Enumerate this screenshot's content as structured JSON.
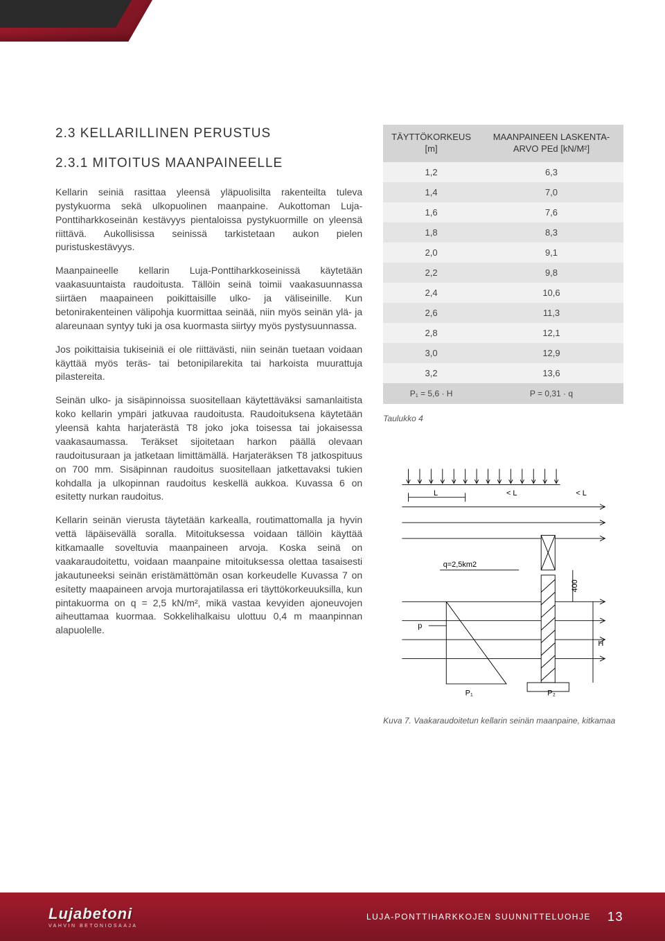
{
  "headings": {
    "h2": "2.3 KELLARILLINEN PERUSTUS",
    "h3": "2.3.1 MITOITUS MAANPAINEELLE"
  },
  "paragraphs": {
    "p1": "Kellarin seiniä rasittaa yleensä yläpuolisilta rakenteilta tuleva pystykuorma sekä ulkopuolinen maanpaine. Aukottoman Luja-Ponttiharkkoseinän kestävyys pientaloissa pystykuormille on yleensä riittävä. Aukollisissa seinissä tarkistetaan aukon pielen puristuskestävyys.",
    "p2": "Maanpaineelle kellarin Luja-Ponttiharkkoseinissä käytetään vaakasuuntaista raudoitusta. Tällöin seinä toimii vaakasuunnassa siirtäen maapaineen poikittaisille ulko- ja väliseinille. Kun betonirakenteinen välipohja kuormittaa seinää, niin myös seinän ylä- ja alareunaan syntyy tuki ja osa kuormasta siirtyy myös pystysuunnassa.",
    "p3": "Jos poikittaisia tukiseiniä ei ole riittävästi, niin seinän tuetaan voidaan käyttää myös teräs- tai betonipilarekita tai harkoista muurattuja pilastereita.",
    "p4": "Seinän ulko- ja sisäpinnoissa suositellaan käytettäväksi samanlaitista koko kellarin ympäri jatkuvaa raudoitusta. Raudoituksena käytetään yleensä kahta harjaterästä T8 joko joka toisessa tai jokaisessa vaakasaumassa. Teräkset sijoitetaan harkon päällä olevaan raudoitusuraan ja jatketaan limittämällä. Harjateräksen T8 jatkospituus on 700 mm. Sisäpinnan raudoitus suositellaan jatkettavaksi tukien kohdalla ja ulkopinnan raudoitus keskellä aukkoa. Kuvassa 6 on esitetty nurkan raudoitus.",
    "p5": "Kellarin seinän vierusta täytetään karkealla, routimattomalla ja hyvin vettä läpäisevällä soralla. Mitoituksessa voidaan tällöin käyttää kitkamaalle soveltuvia maanpaineen arvoja. Koska seinä on vaakaraudoitettu, voidaan maanpaine mitoituksessa olettaa tasaisesti jakautuneeksi seinän eristämättömän osan korkeudelle Kuvassa 7 on esitetty maapaineen arvoja murtorajatilassa eri täyttökorkeuuksilla, kun pintakuorma on q = 2,5 kN/m², mikä vastaa kevyiden ajoneuvojen aiheuttamaa kuormaa. Sokkelihalkaisu ulottuu 0,4 m maanpinnan alapuolelle."
  },
  "table": {
    "header_left": "TÄYTTÖKORKEUS [m]",
    "header_right": "MAANPAINEEN LASKENTA-ARVO PEd [kN/M²]",
    "rows": [
      [
        "1,2",
        "6,3"
      ],
      [
        "1,4",
        "7,0"
      ],
      [
        "1,6",
        "7,6"
      ],
      [
        "1,8",
        "8,3"
      ],
      [
        "2,0",
        "9,1"
      ],
      [
        "2,2",
        "9,8"
      ],
      [
        "2,4",
        "10,6"
      ],
      [
        "2,6",
        "11,3"
      ],
      [
        "2,8",
        "12,1"
      ],
      [
        "3,0",
        "12,9"
      ],
      [
        "3,2",
        "13,6"
      ]
    ],
    "formula_left": "P₁ = 5,6 · H",
    "formula_right": "P = 0,31 · q"
  },
  "captions": {
    "table_caption": "Taulukko 4",
    "figure_caption": "Kuva 7. Vaakaraudoitetun kellarin seinän maanpaine, kitkamaa"
  },
  "diagram": {
    "q_label": "q=2,5km2",
    "L_label": "L",
    "lt_L_label": "< L",
    "p_label": "p",
    "p1_label": "P₁",
    "p2_label": "P₂",
    "v400": "400",
    "H_label": "H",
    "stroke": "#000000",
    "line_width": 1
  },
  "footer": {
    "logo": "Lujabetoni",
    "tagline": "VAHVIN BETONIOSAAJA",
    "doc_title": "LUJA-PONTTIHARKKOJEN  SUUNNITTELUOHJE",
    "page_number": "13"
  }
}
